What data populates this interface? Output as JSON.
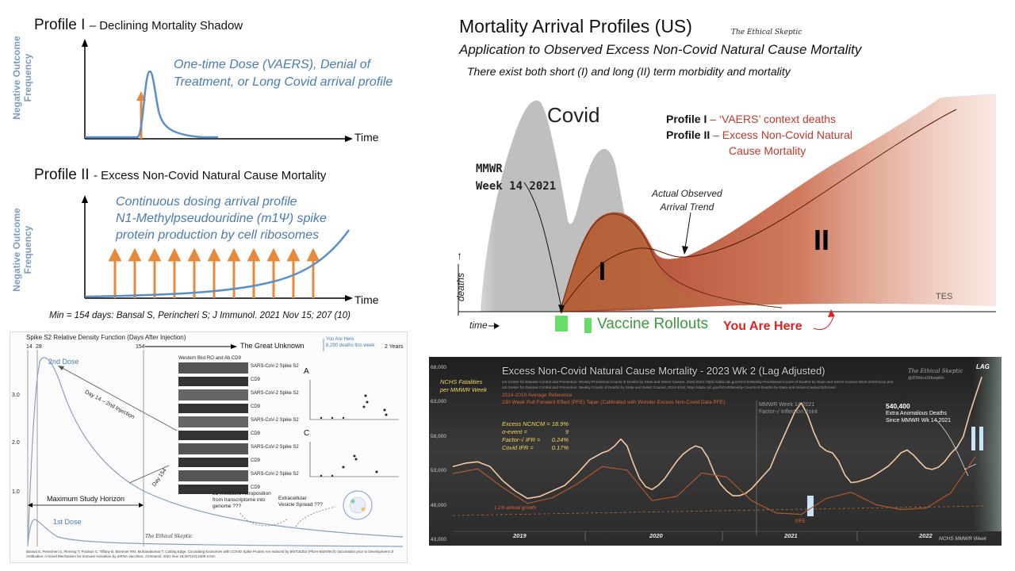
{
  "profile_one": {
    "title": "Profile I",
    "subtitle": "– Declining Mortality Shadow",
    "ylabel": "Negative Outcome Frequency",
    "xlabel": "Time",
    "note_line1": "One-time Dose (VAERS), Denial of",
    "note_line2": "Treatment, or Long Covid arrival profile"
  },
  "profile_two": {
    "title": "Profile II",
    "subtitle": "- Excess Non-Covid Natural Cause Mortality",
    "ylabel": "Negative Outcome Frequency",
    "xlabel": "Time",
    "note_line1": "Continuous dosing arrival profile",
    "note_line2": "N1-Methylpseudouridine (m1Ψ) spike",
    "note_line3": "protein production by cell ribosomes"
  },
  "citation": "Min = 154 days: Bansal S, Perincheri S; J Immunol. 2021 Nov 15; 207 (10)",
  "spike_panel": {
    "title": "Spike S2 Relative Density Function (Days After Injection)",
    "unknown_label": "The Great Unknown",
    "x_ticks": [
      "14",
      "28",
      "154"
    ],
    "years_label": "2 Years",
    "you_are_here_line1": "You Are Here",
    "you_are_here_line2": "8,290 deaths this week",
    "y_ticks": [
      "3.0",
      "2.0",
      "1.0"
    ],
    "dose2_label": "2nd Dose",
    "dose1_label": "1st Dose",
    "day14_label": "Day 14 – 2nd Injection",
    "day154_label": "Day 154",
    "horizon_label": "Maximum Study Horizon",
    "blot_header": "Western Blot RO and Ab CD9",
    "blot_rows": [
      "SARS-CoV-2 Spike S2",
      "CD9",
      "SARS-CoV-2 Spike S2",
      "CD9",
      "SARS-CoV-2 Spike S2",
      "CD9",
      "SARS-CoV-2 Spike S2",
      "CD9",
      "SARS-CoV-2 Spike S2",
      "CD9"
    ],
    "panel_a": "A",
    "panel_c": "C",
    "l1_note": "L1-mediated retroposition from transcriptome into genome ???",
    "vesicle_note": "Extracellular Vesicle Spread ???",
    "watermark": "The Ethical Skeptic",
    "footnote": "Bansal S, Perincheri S, Fleming T, Poulson C, Tiffany B, Bremner RM, Mohanakumar T. Cutting Edge: Circulating Exosomes with COVID Spike Protein Are Induced by BNT162b2 (Pfizer-BioNTech) Vaccination prior to Development of Antibodies: A Novel Mechanism for Immune Activation by mRNA Vaccines. J Immunol. 2021 Nov 15;207(10):2405-2410."
  },
  "arrival": {
    "title": "Mortality Arrival Profiles (US)",
    "brand": "The Ethical Skeptic",
    "subtitle": "Application to Observed Excess Non-Covid Natural Cause Mortality",
    "subtitle2": "There exist both short (I) and long (II) term morbidity and mortality",
    "covid_label": "Covid",
    "legend_p1": "Profile I",
    "legend_p1_desc": "– ‘VAERS’ context deaths",
    "legend_p2": "Profile II",
    "legend_p2_desc_line1": "– Excess Non-Covid Natural",
    "legend_p2_desc_line2": "Cause Mortality",
    "mmwr_line1": "MMWR",
    "mmwr_line2": "Week 14 2021",
    "actual_line1": "Actual Observed",
    "actual_line2": "Arrival Trend",
    "roman_one": "I",
    "roman_two": "II",
    "ylabel": "deaths",
    "xlabel": "time",
    "tes": "TES",
    "vaccine_label": "Vaccine Rollouts",
    "you_are_here": "You Are Here"
  },
  "excess_chart": {
    "title": "Excess Non-Covid Natural Cause Mortality - 2023 Wk 2 (Lag Adjusted)",
    "ylabel_line1": "NCHS Fatalities",
    "ylabel_line2": "per MMWR Week",
    "source_line1": "US Center for Disease Control and Prevention: Weekly Provisional Counts of Deaths by State and Select Causes, 2020-2023; https://data.cdc.gov/NCHS/Weekly-Provisional-Counts-of-Deaths-by-State-and-Select-Causes-2020-2023/muzy-jte6",
    "source_line2": "US Center for Disease Control and Prevention: Weekly Counts of Deaths by State and Select Causes, 2014-2019; https://data.cdc.gov/NCHS/Weekly-Counts-of-Deaths-by-State-and-Select-Causes/3yf8-kanr",
    "ref_label": "2014-2019 Average Reference",
    "pfe_label": "230 Week Pull Forward Effect (PFE) Taper (Calibrated with Wonder Excess Non-Covid Data PFE)",
    "stats": [
      {
        "label": "Excess NCNCM =",
        "value": "18.9%"
      },
      {
        "label": "σ-event =",
        "value": "9"
      },
      {
        "label": "Factor-√ IFR =",
        "value": "0.24%"
      },
      {
        "label": "Covid IFR =",
        "value": "0.17%"
      }
    ],
    "mmwr_line1": "MMWR Week 14 2021",
    "mmwr_line2": "Factor-√ Inflection Point",
    "deaths_value": "540,400",
    "deaths_line1": "Extra Anomalous Deaths",
    "deaths_line2": "Since MMWR Wk 14 2021",
    "brand_line1": "The Ethical Skeptic",
    "brand_line2": "@EthicalSkeptic",
    "lag": "LAG",
    "growth": "1.1% annual growth",
    "pfe": "PFE",
    "roman_one": "I",
    "roman_two": "II",
    "xlabel": "NCHS MMWR Week",
    "colors": {
      "observed": "#f4c9a2",
      "pfe": "#b0582a",
      "background": "#2b2b2b",
      "highlight": "#f3d75c",
      "roman": "#c8e6f6"
    }
  },
  "chart_data": {
    "type": "line",
    "title": "Excess Non-Covid Natural Cause Mortality - 2023 Wk 2 (Lag Adjusted)",
    "ylabel": "NCHS Fatalities per MMWR Week",
    "xlabel": "NCHS MMWR Week",
    "ylim": [
      43000,
      68000
    ],
    "y_ticks": [
      "68,000",
      "63,000",
      "58,000",
      "53,000",
      "48,000",
      "43,000"
    ],
    "x_labels": [
      "2019",
      "2020",
      "2021",
      "2022"
    ],
    "x_range": [
      2018.8,
      2023.1
    ],
    "series": [
      {
        "x": [
          2018.8,
          2018.9,
          2019.0,
          2019.1,
          2019.2,
          2019.3,
          2019.4,
          2019.5,
          2019.6,
          2019.7,
          2019.8,
          2019.9,
          2020.0,
          2020.05,
          2020.1,
          2020.15,
          2020.2,
          2020.25,
          2020.3,
          2020.35,
          2020.4,
          2020.45,
          2020.5,
          2020.55,
          2020.6,
          2020.65,
          2020.7,
          2020.75,
          2020.8,
          2020.85,
          2020.9,
          2020.95,
          2021.0,
          2021.05,
          2021.1,
          2021.15,
          2021.2,
          2021.25,
          2021.3,
          2021.35,
          2021.4,
          2021.45,
          2021.5,
          2021.55,
          2021.6,
          2021.65,
          2021.7,
          2021.75,
          2021.8,
          2021.85,
          2021.9,
          2021.95,
          2022.0,
          2022.05,
          2022.1,
          2022.15,
          2022.2,
          2022.25,
          2022.3,
          2022.35,
          2022.4,
          2022.45,
          2022.5,
          2022.55,
          2022.6,
          2022.65,
          2022.7,
          2022.75,
          2022.8,
          2022.85,
          2022.9,
          2022.95,
          2023.0,
          2023.05
        ],
        "y": [
          53500,
          54000,
          54200,
          53500,
          51500,
          50000,
          48900,
          49200,
          50000,
          50800,
          52500,
          54500,
          55500,
          55800,
          56500,
          57500,
          56500,
          54000,
          51800,
          50600,
          50200,
          50800,
          51700,
          53000,
          54300,
          55300,
          56000,
          56500,
          56200,
          54800,
          52600,
          51000,
          50000,
          49300,
          49300,
          49600,
          50300,
          51300,
          52300,
          53300,
          55500,
          57500,
          59500,
          61500,
          62700,
          61000,
          58500,
          56500,
          55800,
          55500,
          54300,
          52300,
          51200,
          51300,
          51600,
          51900,
          52400,
          53000,
          53600,
          54500,
          55500,
          55900,
          55200,
          54200,
          53300,
          53100,
          53400,
          54200,
          55400,
          56300,
          57800,
          61000,
          63800,
          66500
        ]
      },
      {
        "x": [
          2018.8,
          2019.0,
          2019.2,
          2019.4,
          2019.6,
          2019.8,
          2020.0,
          2020.2,
          2020.4,
          2020.6,
          2020.8,
          2021.0,
          2021.2,
          2021.4,
          2021.6,
          2021.8,
          2022.0,
          2022.2,
          2022.4,
          2022.6,
          2022.8,
          2023.0
        ],
        "y": [
          52500,
          53200,
          50500,
          48200,
          49000,
          51000,
          53500,
          53000,
          48600,
          49200,
          52600,
          52000,
          48600,
          46800,
          46600,
          48900,
          49800,
          48000,
          47300,
          47500,
          49700,
          55000
        ]
      }
    ],
    "grid": false
  }
}
